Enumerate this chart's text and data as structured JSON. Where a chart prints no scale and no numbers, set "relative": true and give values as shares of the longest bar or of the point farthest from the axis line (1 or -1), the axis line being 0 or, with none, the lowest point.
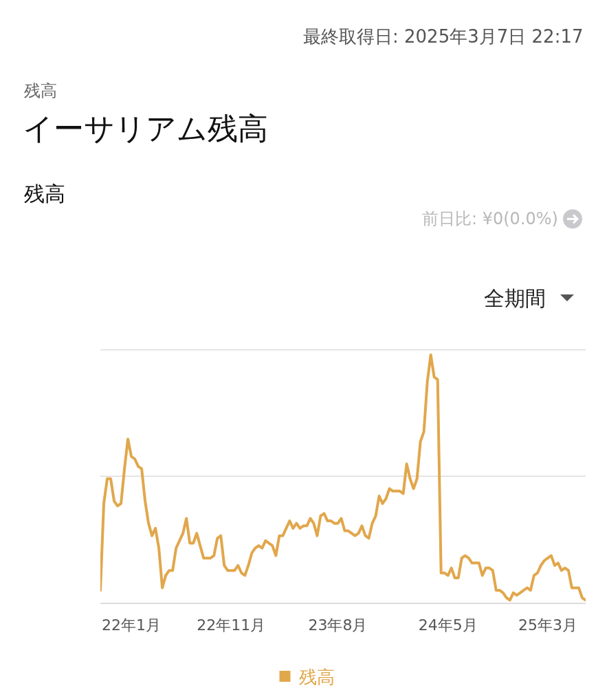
{
  "chart_data": {
    "type": "line",
    "title": "イーサリアム残高",
    "subtitle": "残高",
    "annotations": [
      "最終取得日: 2025年3月7日 22:17",
      "残高",
      "前日比: ¥0(0.0%)",
      "全期間"
    ],
    "categories": [
      null,
      null,
      null,
      null,
      null,
      null,
      null,
      null,
      null,
      "22年1月",
      null,
      null,
      null,
      null,
      null,
      null,
      null,
      null,
      null,
      null,
      null,
      null,
      null,
      null,
      null,
      null,
      null,
      null,
      null,
      null,
      null,
      null,
      null,
      null,
      null,
      null,
      null,
      null,
      "22年11月",
      null,
      null,
      null,
      null,
      null,
      null,
      null,
      null,
      null,
      null,
      null,
      null,
      null,
      null,
      null,
      null,
      null,
      null,
      null,
      null,
      null,
      null,
      null,
      null,
      null,
      null,
      null,
      null,
      null,
      null,
      "23年8月",
      null,
      null,
      null,
      null,
      null,
      null,
      null,
      null,
      null,
      null,
      null,
      null,
      null,
      null,
      null,
      null,
      null,
      null,
      null,
      null,
      null,
      null,
      null,
      null,
      null,
      null,
      null,
      null,
      null,
      null,
      null,
      "24年5月",
      null,
      null,
      null,
      null,
      null,
      null,
      null,
      null,
      null,
      null,
      null,
      null,
      null,
      null,
      null,
      null,
      null,
      null,
      null,
      null,
      null,
      null,
      null,
      null,
      null,
      null,
      null,
      null,
      "25年3月",
      null,
      null,
      null,
      null,
      null,
      null,
      null,
      null,
      null,
      null,
      null
    ],
    "relative": true,
    "series": [
      {
        "name": "残高",
        "color": "#e1a74c",
        "values": [
          0.05,
          0.4,
          0.5,
          0.5,
          0.41,
          0.39,
          0.4,
          0.54,
          0.66,
          0.59,
          0.58,
          0.55,
          0.54,
          0.41,
          0.32,
          0.27,
          0.3,
          0.22,
          0.06,
          0.11,
          0.13,
          0.13,
          0.22,
          0.25,
          0.28,
          0.34,
          0.24,
          0.24,
          0.28,
          0.23,
          0.18,
          0.18,
          0.18,
          0.19,
          0.26,
          0.27,
          0.15,
          0.13,
          0.13,
          0.13,
          0.15,
          0.12,
          0.11,
          0.15,
          0.2,
          0.22,
          0.23,
          0.22,
          0.25,
          0.24,
          0.23,
          0.19,
          0.27,
          0.27,
          0.3,
          0.33,
          0.3,
          0.32,
          0.3,
          0.31,
          0.31,
          0.34,
          0.32,
          0.27,
          0.35,
          0.36,
          0.33,
          0.33,
          0.32,
          0.32,
          0.34,
          0.29,
          0.29,
          0.28,
          0.27,
          0.28,
          0.31,
          0.27,
          0.26,
          0.32,
          0.35,
          0.43,
          0.4,
          0.42,
          0.46,
          0.45,
          0.45,
          0.45,
          0.44,
          0.56,
          0.5,
          0.46,
          0.5,
          0.65,
          0.69,
          0.89,
          1.0,
          0.91,
          0.9,
          0.12,
          0.12,
          0.11,
          0.14,
          0.1,
          0.1,
          0.18,
          0.19,
          0.18,
          0.16,
          0.16,
          0.16,
          0.11,
          0.14,
          0.14,
          0.13,
          0.05,
          0.05,
          0.04,
          0.02,
          0.01,
          0.04,
          0.03,
          0.04,
          0.05,
          0.06,
          0.05,
          0.11,
          0.12,
          0.15,
          0.17,
          0.18,
          0.19,
          0.15,
          0.16,
          0.13,
          0.14,
          0.13,
          0.06,
          0.06,
          0.06,
          0.02,
          0.01
        ]
      }
    ],
    "ref_lines": [
      {
        "axis": "y",
        "value": 0.51,
        "color": "#dcdcdc"
      },
      {
        "axis": "y",
        "value": 1.02,
        "color": "#dcdcdc"
      }
    ],
    "legend": "bottom"
  }
}
